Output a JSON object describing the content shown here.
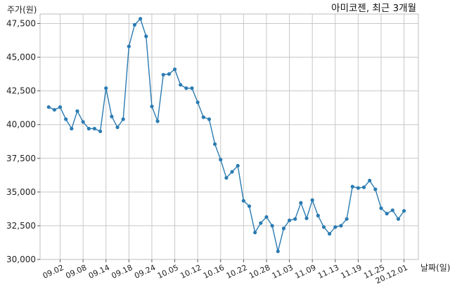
{
  "chart_data": {
    "type": "line",
    "title": "아미코젠, 최근 3개월",
    "ylabel": "주가(원)",
    "xlabel": "날짜(일)",
    "ylim": [
      30000,
      48200
    ],
    "yticks": [
      30000,
      32500,
      35000,
      37500,
      40000,
      42500,
      45000,
      47500
    ],
    "ytick_labels": [
      "30,000",
      "32,500",
      "35,000",
      "37,500",
      "40,000",
      "42,500",
      "45,000",
      "47,500"
    ],
    "grid": true,
    "line_color": "#2b7bb2",
    "xtick_labels": [
      "09.02",
      "09.08",
      "09.14",
      "09.18",
      "09.24",
      "10.05",
      "10.12",
      "10.16",
      "10.22",
      "10.28",
      "11.03",
      "11.09",
      "11.13",
      "11.19",
      "11.25",
      "20.12.01"
    ],
    "xtick_positions": [
      2,
      6,
      10,
      14,
      18,
      22,
      26,
      30,
      34,
      38,
      42,
      46,
      50,
      54,
      58,
      62
    ],
    "x": [
      0,
      1,
      2,
      3,
      4,
      5,
      6,
      7,
      8,
      9,
      10,
      11,
      12,
      13,
      14,
      15,
      16,
      17,
      18,
      19,
      20,
      21,
      22,
      23,
      24,
      25,
      26,
      27,
      28,
      29,
      30,
      31,
      32,
      33,
      34,
      35,
      36,
      37,
      38,
      39,
      40,
      41,
      42,
      43,
      44,
      45,
      46,
      47,
      48,
      49,
      50,
      51,
      52,
      53,
      54,
      55,
      56,
      57,
      58,
      59,
      60,
      61,
      62
    ],
    "values": [
      41300,
      41100,
      41300,
      40400,
      39700,
      41000,
      40200,
      39700,
      39700,
      39500,
      42700,
      40600,
      39800,
      40400,
      45800,
      47400,
      47850,
      46550,
      41350,
      40250,
      43700,
      43750,
      44100,
      42950,
      42700,
      42700,
      41650,
      40550,
      40400,
      38550,
      37400,
      36050,
      36500,
      36950,
      34350,
      33950,
      32000,
      32700,
      33150,
      32500,
      30600,
      32300,
      32900,
      33000,
      34200,
      33050,
      34400,
      33250,
      32400,
      31900,
      32400,
      32500,
      33000,
      35400,
      35300,
      35350,
      35850,
      35200,
      33800,
      33400,
      33650,
      33000,
      33600
    ]
  }
}
